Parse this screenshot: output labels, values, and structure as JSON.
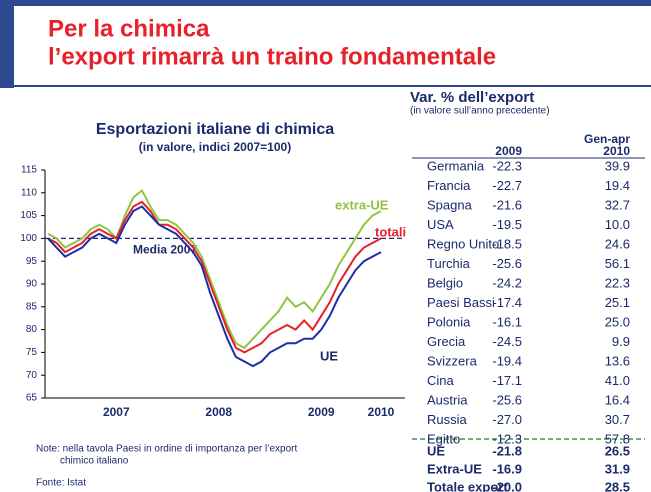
{
  "header": {
    "title": [
      "Per la chimica",
      "l’export rimarrà un traino fondamentale"
    ]
  },
  "chart_data": {
    "type": "line",
    "title": "Esportazioni italiane di chimica",
    "subtitle": "(in valore, indici 2007=100)",
    "categories": [
      null,
      null,
      null,
      null,
      null,
      null,
      null,
      null,
      "2007",
      null,
      null,
      null,
      null,
      null,
      null,
      null,
      null,
      null,
      null,
      null,
      "2008",
      null,
      null,
      null,
      null,
      null,
      null,
      null,
      null,
      null,
      null,
      null,
      "2009",
      null,
      null,
      null,
      null,
      null,
      null,
      "2010"
    ],
    "series": [
      {
        "name": "extra-UE",
        "color": "#8dc63f",
        "values": [
          101,
          100,
          98,
          99,
          100,
          102,
          103,
          102,
          100,
          105,
          109,
          110.5,
          107,
          104,
          104,
          103,
          101,
          99,
          96,
          91,
          86,
          81,
          77,
          76,
          78,
          80,
          82,
          84,
          87,
          85,
          86,
          84,
          87,
          90,
          94,
          97,
          100,
          103,
          105,
          106
        ]
      },
      {
        "name": "totali",
        "color": "#e8202a",
        "values": [
          100,
          99,
          97,
          98,
          99,
          101,
          102,
          101,
          100,
          104,
          107,
          108,
          106,
          103,
          103,
          102,
          100,
          98,
          95,
          90,
          85,
          80,
          76,
          75,
          76,
          77,
          79,
          80,
          81,
          80,
          82,
          80,
          83,
          86,
          90,
          93,
          96,
          98,
          99,
          100
        ]
      },
      {
        "name": "UE",
        "color": "#1c2ea8",
        "values": [
          100,
          98,
          96,
          97,
          98,
          100,
          101,
          100,
          99,
          103,
          106,
          107,
          105,
          103,
          102,
          101,
          99,
          97,
          94,
          88,
          83,
          78,
          74,
          73,
          72,
          73,
          75,
          76,
          77,
          77,
          78,
          78,
          80,
          83,
          87,
          90,
          93,
          95,
          96,
          97
        ]
      }
    ],
    "reference_line": {
      "value": 100,
      "label": "Media 2007"
    },
    "ylim": [
      65,
      115
    ],
    "yticks": [
      65,
      70,
      75,
      80,
      85,
      90,
      95,
      100,
      105,
      110,
      115
    ]
  },
  "table": {
    "title": "Var. % dell’export",
    "subtitle": "(in valore sull’anno precedente)",
    "columns": [
      "2009",
      "Gen-apr",
      "2010"
    ],
    "rows": [
      [
        "Germania",
        "-22.3",
        "39.9"
      ],
      [
        "Francia",
        "-22.7",
        "19.4"
      ],
      [
        "Spagna",
        "-21.6",
        "32.7"
      ],
      [
        "USA",
        "-19.5",
        "10.0"
      ],
      [
        "Regno Unito",
        "-18.5",
        "24.6"
      ],
      [
        "Turchia",
        "-25.6",
        "56.1"
      ],
      [
        "Belgio",
        "-24.2",
        "22.3"
      ],
      [
        "Paesi Bassi",
        "-17.4",
        "25.1"
      ],
      [
        "Polonia",
        "-16.1",
        "25.0"
      ],
      [
        "Grecia",
        "-24.5",
        "9.9"
      ],
      [
        "Svizzera",
        "-19.4",
        "13.6"
      ],
      [
        "Cina",
        "-17.1",
        "41.0"
      ],
      [
        "Austria",
        "-25.6",
        "16.4"
      ],
      [
        "Russia",
        "-27.0",
        "30.7"
      ],
      [
        "Egitto",
        "-12.3",
        "57.8"
      ]
    ],
    "totals": [
      [
        "UE",
        "-21.8",
        "26.5"
      ],
      [
        "Extra-UE",
        "-16.9",
        "31.9"
      ],
      [
        "Totale export",
        "-20.0",
        "28.5"
      ]
    ]
  },
  "notes": [
    "Note: nella tavola Paesi in ordine di importanza per l’export",
    "chimico italiano",
    "Fonte: Istat"
  ]
}
